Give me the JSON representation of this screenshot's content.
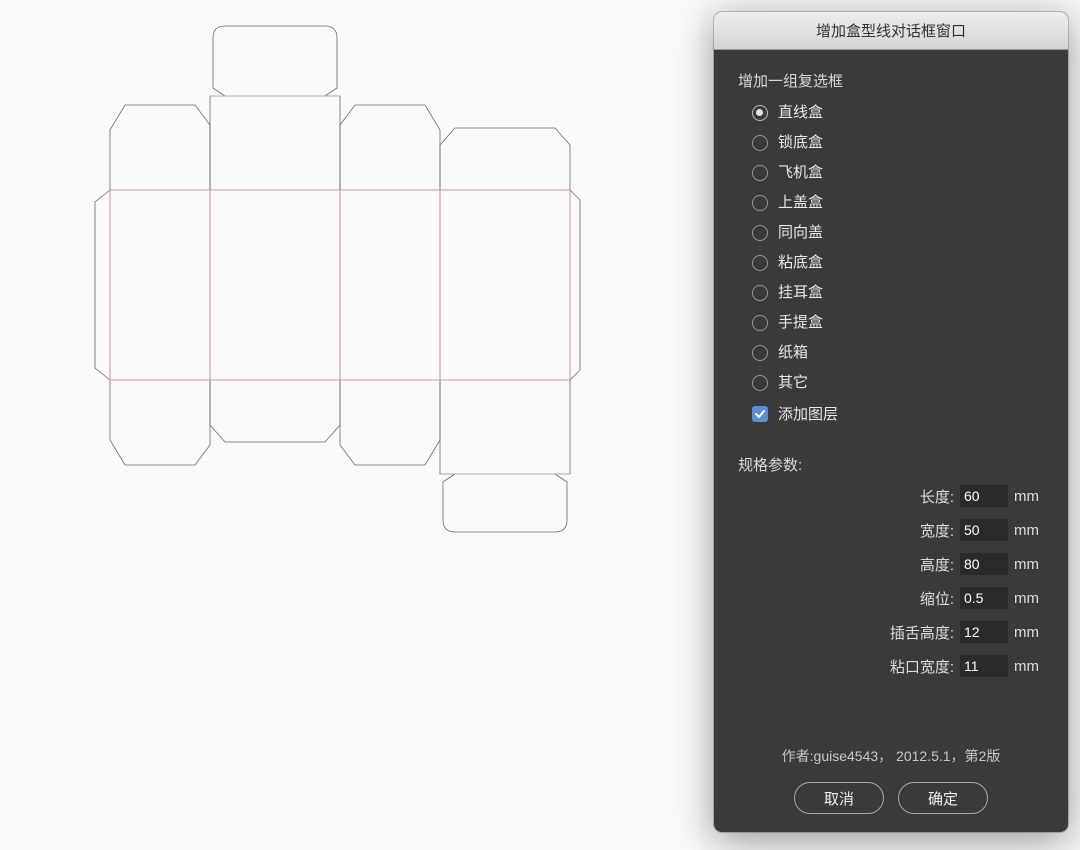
{
  "dialog": {
    "title": "增加盒型线对话框窗口",
    "group_label": "增加一组复选框",
    "box_types": [
      {
        "label": "直线盒",
        "selected": true
      },
      {
        "label": "锁底盒",
        "selected": false
      },
      {
        "label": "飞机盒",
        "selected": false
      },
      {
        "label": "上盖盒",
        "selected": false
      },
      {
        "label": "同向盖",
        "selected": false
      },
      {
        "label": "粘底盒",
        "selected": false
      },
      {
        "label": "挂耳盒",
        "selected": false
      },
      {
        "label": "手提盒",
        "selected": false
      },
      {
        "label": "纸箱",
        "selected": false
      },
      {
        "label": "其它",
        "selected": false
      }
    ],
    "add_layer": {
      "label": "添加图层",
      "checked": true
    },
    "params_label": "规格参数:",
    "params": [
      {
        "label": "长度:",
        "value": "60",
        "unit": "mm"
      },
      {
        "label": "宽度:",
        "value": "50",
        "unit": "mm"
      },
      {
        "label": "高度:",
        "value": "80",
        "unit": "mm"
      },
      {
        "label": "缩位:",
        "value": "0.5",
        "unit": "mm"
      },
      {
        "label": "插舌高度:",
        "value": "12",
        "unit": "mm"
      },
      {
        "label": "粘口宽度:",
        "value": "11",
        "unit": "mm"
      }
    ],
    "footer": "作者:guise4543， 2012.5.1，第2版",
    "buttons": {
      "cancel": "取消",
      "ok": "确定"
    },
    "colors": {
      "dialog_bg": "#3a3a3a",
      "titlebar_start": "#eeeeee",
      "titlebar_end": "#d4d4d4",
      "checkbox_bg": "#5a8fd4",
      "text": "#e8e8e8",
      "input_bg": "#2a2a2a"
    }
  },
  "dieline": {
    "type": "box-unfold",
    "stroke_cut": "#6a6a6a",
    "stroke_fold": "#e8a0a0",
    "stroke_width": 0.8,
    "background": "#fafafa",
    "length_mm": 60,
    "width_mm": 50,
    "height_mm": 80,
    "tab_mm": 12,
    "glue_mm": 11
  }
}
